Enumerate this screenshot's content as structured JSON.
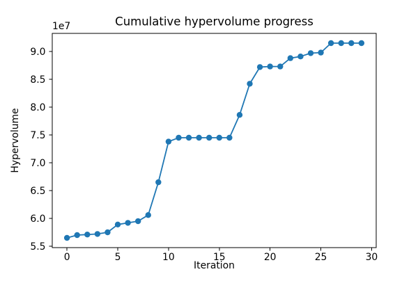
{
  "chart_data": {
    "type": "line",
    "title": "Cumulative hypervolume progress",
    "xlabel": "Iteration",
    "ylabel": "Hypervolume",
    "y_offset_label": "1e7",
    "x": [
      0,
      1,
      2,
      3,
      4,
      5,
      6,
      7,
      8,
      9,
      10,
      11,
      12,
      13,
      14,
      15,
      16,
      17,
      18,
      19,
      20,
      21,
      22,
      23,
      24,
      25,
      26,
      27,
      28,
      29
    ],
    "y": [
      56500000,
      57000000,
      57100000,
      57200000,
      57500000,
      58900000,
      59200000,
      59500000,
      60600000,
      66500000,
      73800000,
      74500000,
      74500000,
      74500000,
      74500000,
      74500000,
      74500000,
      78600000,
      84200000,
      87200000,
      87300000,
      87300000,
      88800000,
      89100000,
      89700000,
      89800000,
      91500000,
      91500000,
      91500000,
      91500000
    ],
    "x_ticks": [
      0,
      5,
      10,
      15,
      20,
      25,
      30
    ],
    "x_tick_labels": [
      "0",
      "5",
      "10",
      "15",
      "20",
      "25",
      "30"
    ],
    "y_ticks": [
      55000000,
      60000000,
      65000000,
      70000000,
      75000000,
      80000000,
      85000000,
      90000000
    ],
    "y_tick_labels": [
      "5.5",
      "6.0",
      "6.5",
      "7.0",
      "7.5",
      "8.0",
      "8.5",
      "9.0"
    ],
    "xlim": [
      -1.45,
      30.45
    ],
    "ylim": [
      54750000,
      93250000
    ],
    "line_color": "#1f77b4",
    "marker": "o",
    "marker_size": 4.2,
    "line_width": 1.8,
    "grid": false,
    "legend": null
  }
}
